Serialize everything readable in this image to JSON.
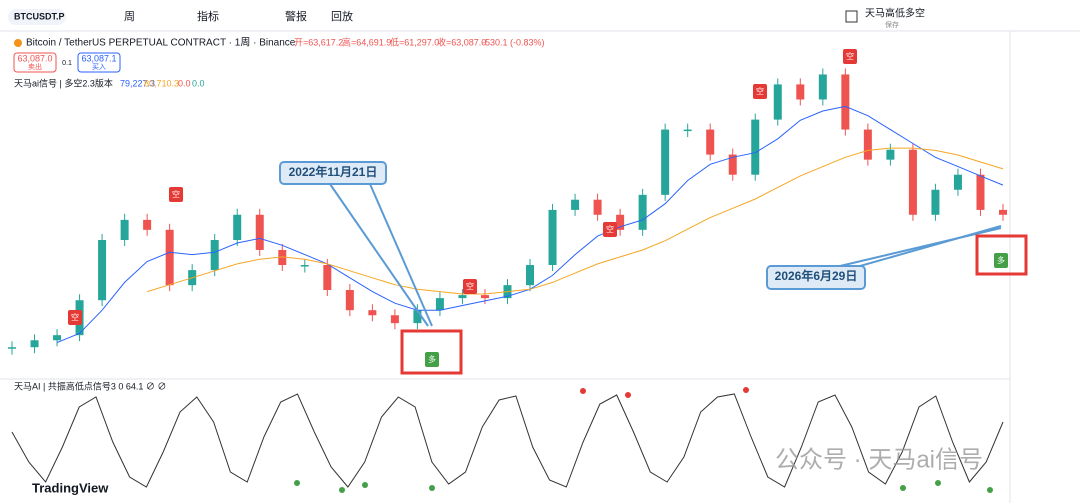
{
  "toolbar": {
    "symbol": "BTCUSDT.P",
    "interval": "周",
    "indicators": "指标",
    "alert": "警报",
    "replay": "回放",
    "layout_name": "天马高低多空",
    "save": "保存"
  },
  "legend": {
    "title": "Bitcoin / TetherUS PERPETUAL CONTRACT · 1周 · Binance",
    "open": "开=63,617.2",
    "high": "高=64,691.9",
    "low": "低=61,297.0",
    "close": "收=63,087.0",
    "change": "-530.1 (-0.83%)",
    "sell_price": "63,087.0",
    "sell": "卖出",
    "spread": "0.1",
    "buy_price": "63,087.1",
    "buy": "买入",
    "indicator": "天马ai信号 | 多空2.3版本",
    "ind_values": [
      "79,227.3",
      "80,710.3",
      "0.0",
      "0.0"
    ]
  },
  "markers": [
    "空",
    "空",
    "空",
    "空",
    "空",
    "空",
    "多",
    "多"
  ],
  "annotations": [
    "2022年11月21日",
    "2026年6月29日"
  ],
  "oscillator_legend": "天马AI | 共振高低点信号3  0  64.1  ∅  ∅",
  "watermark": "公众号 · 天马ai信号",
  "brand": "TradingView",
  "chart_data": [
    {
      "type": "candlestick",
      "values": [
        6000,
        9000,
        11200,
        26300,
        52300,
        61000,
        56700,
        32800,
        39300,
        52300,
        63200,
        48000,
        41500,
        41500,
        30700,
        22000,
        19800,
        16400,
        22000,
        27200,
        28500,
        27200,
        32800,
        41500,
        65300,
        69700,
        63200,
        56700,
        71800,
        100000,
        100000,
        89200,
        80500,
        104300,
        119500,
        113000,
        123800,
        100000,
        87000,
        91300,
        63200,
        74000,
        80500,
        65300,
        63200
      ],
      "ylim": [
        -6000,
        143000
      ],
      "up_color": "#26a69a",
      "down_color": "#ef5350",
      "ma": [
        {
          "color": "#2962ff",
          "values": [
            null,
            null,
            8000,
            12000,
            22000,
            34000,
            43000,
            47000,
            46000,
            47000,
            51000,
            53000,
            50000,
            46000,
            42000,
            36000,
            30000,
            25000,
            22000,
            22000,
            24000,
            26000,
            28000,
            31000,
            37000,
            46000,
            54000,
            58000,
            61000,
            68000,
            78000,
            85000,
            88000,
            90000,
            96000,
            104000,
            108000,
            110000,
            106000,
            100000,
            94000,
            88000,
            84000,
            80000,
            76000
          ]
        },
        {
          "color": "#f5a623",
          "values": [
            null,
            null,
            null,
            null,
            null,
            null,
            30000,
            33000,
            36000,
            39000,
            42000,
            44000,
            45000,
            44000,
            42000,
            39000,
            36000,
            33000,
            31000,
            30000,
            29000,
            29000,
            30000,
            31000,
            34000,
            38000,
            42000,
            45000,
            48000,
            52000,
            57000,
            62000,
            66000,
            70000,
            75000,
            80000,
            84000,
            88000,
            91000,
            92000,
            92000,
            91000,
            89000,
            86000,
            83000
          ]
        }
      ]
    },
    {
      "type": "line",
      "values": [
        60,
        30,
        10,
        45,
        85,
        95,
        50,
        15,
        5,
        40,
        80,
        95,
        70,
        20,
        10,
        55,
        90,
        98,
        60,
        25,
        5,
        30,
        75,
        95,
        85,
        30,
        8,
        20,
        65,
        92,
        96,
        45,
        12,
        5,
        50,
        88,
        97,
        60,
        20,
        10,
        35,
        80,
        95,
        98,
        55,
        15,
        5,
        45,
        90,
        97,
        65,
        20,
        8,
        40,
        85,
        96,
        50,
        10,
        30,
        70
      ],
      "ylim": [
        0,
        100
      ],
      "color": "#333333"
    }
  ]
}
